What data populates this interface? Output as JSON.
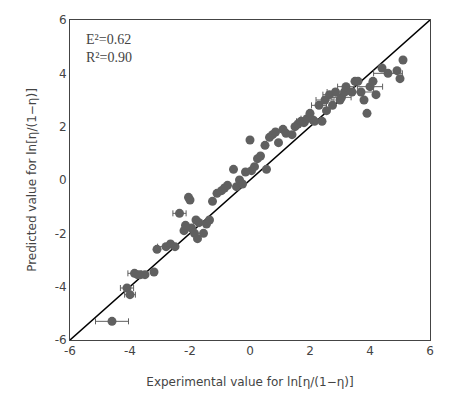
{
  "chart_data": {
    "type": "scatter",
    "xlabel": "Experimental value for ln[η/(1−η)]",
    "ylabel": "Predicted value for ln[η/(1−η)]",
    "annotations": [
      "E²=0.62",
      "R²=0.90"
    ],
    "xlim": [
      -6,
      6
    ],
    "ylim": [
      -6,
      6
    ],
    "xticks": [
      -6,
      -4,
      -2,
      0,
      2,
      4,
      6
    ],
    "yticks": [
      -6,
      -4,
      -2,
      0,
      2,
      4,
      6
    ],
    "grid": false,
    "series": [
      {
        "type": "line",
        "color": "#000000",
        "x": [
          -6,
          6
        ],
        "values": [
          -6,
          6
        ]
      },
      {
        "type": "scatter",
        "color": "#606060",
        "x": [
          -4.6,
          -4.1,
          -4.0,
          -3.85,
          -3.75,
          -3.65,
          -3.5,
          -3.2,
          -3.1,
          -2.8,
          -2.65,
          -2.5,
          -2.35,
          -2.2,
          -2.15,
          -2.05,
          -2.0,
          -1.95,
          -1.85,
          -1.8,
          -1.75,
          -1.7,
          -1.55,
          -1.45,
          -1.35,
          -1.25,
          -1.1,
          -0.95,
          -0.85,
          -0.75,
          -0.55,
          -0.45,
          -0.35,
          -0.25,
          -0.15,
          0.0,
          0.05,
          0.15,
          0.25,
          0.35,
          0.5,
          0.55,
          0.65,
          0.75,
          0.85,
          0.95,
          1.1,
          1.2,
          1.4,
          1.5,
          1.6,
          1.7,
          1.8,
          1.9,
          2.0,
          2.1,
          2.15,
          2.3,
          2.4,
          2.5,
          2.55,
          2.65,
          2.75,
          2.85,
          3.0,
          3.05,
          3.15,
          3.2,
          3.4,
          3.5,
          3.6,
          3.7,
          3.8,
          3.9,
          4.0,
          4.1,
          4.2,
          4.4,
          4.6,
          4.9,
          5.0,
          5.1
        ],
        "values": [
          -5.3,
          -4.05,
          -4.3,
          -3.5,
          -3.55,
          -3.55,
          -3.55,
          -3.45,
          -2.6,
          -2.5,
          -2.4,
          -2.5,
          -1.25,
          -1.9,
          -1.7,
          -0.65,
          -0.75,
          -1.8,
          -2.0,
          -1.5,
          -2.2,
          -1.6,
          -2.0,
          -1.65,
          -1.5,
          -0.8,
          -0.5,
          -0.4,
          -0.3,
          -0.2,
          0.4,
          -0.25,
          0.0,
          -0.15,
          0.3,
          1.5,
          0.35,
          0.5,
          0.8,
          0.9,
          1.3,
          0.4,
          1.6,
          1.7,
          1.8,
          1.4,
          1.9,
          1.75,
          1.7,
          2.0,
          2.1,
          2.2,
          2.15,
          2.3,
          2.5,
          2.25,
          2.2,
          2.8,
          2.2,
          3.0,
          2.6,
          3.2,
          2.8,
          3.3,
          3.0,
          3.1,
          3.3,
          3.5,
          3.3,
          3.7,
          3.7,
          3.3,
          3.0,
          2.5,
          3.5,
          3.7,
          3.2,
          4.2,
          4.0,
          4.1,
          3.8,
          4.5
        ],
        "xerr": [
          0.55,
          0.22,
          0.18,
          0.22,
          0.0,
          0.0,
          0.0,
          0.0,
          0.0,
          0.28,
          0.0,
          0.0,
          0.22,
          0.0,
          0.0,
          0.0,
          0.0,
          0.0,
          0.0,
          0.0,
          0.0,
          0.0,
          0.0,
          0.0,
          0.0,
          0.0,
          0.0,
          0.0,
          0.0,
          0.0,
          0.0,
          0.0,
          0.0,
          0.0,
          0.0,
          0.0,
          0.0,
          0.0,
          0.0,
          0.0,
          0.0,
          0.0,
          0.0,
          0.0,
          0.0,
          0.0,
          0.0,
          0.0,
          0.0,
          0.0,
          0.0,
          0.15,
          0.0,
          0.2,
          0.0,
          0.0,
          0.22,
          0.25,
          0.0,
          0.3,
          0.0,
          0.22,
          0.0,
          0.28,
          0.0,
          0.32,
          0.0,
          0.28,
          0.0,
          0.0,
          0.0,
          0.42,
          0.0,
          0.0,
          0.42,
          0.0,
          0.0,
          0.0,
          0.48,
          0.0,
          0.0,
          0.0
        ]
      }
    ]
  }
}
